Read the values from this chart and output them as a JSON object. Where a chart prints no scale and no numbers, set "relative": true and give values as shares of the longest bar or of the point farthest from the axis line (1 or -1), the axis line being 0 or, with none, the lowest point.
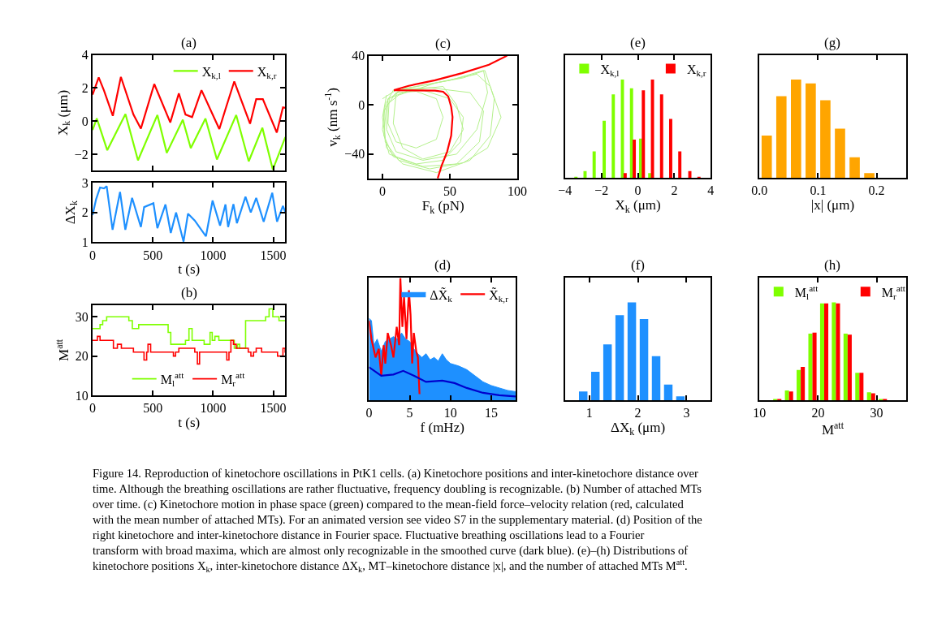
{
  "chart_data": [
    {
      "type": "line",
      "title": "(a)",
      "ylabel": "X$_{k}$ (μm)",
      "xlim": [
        0,
        1600
      ],
      "xticks": [
        0,
        500,
        1000,
        1500
      ],
      "ylim": [
        -3,
        4
      ],
      "yticks": [
        -2,
        0,
        2,
        4
      ],
      "tick_labels": "y",
      "legend": "top right",
      "series": [
        {
          "name": "X$_{k,l}$",
          "color": "#7fff00",
          "x": [
            0,
            35,
            122,
            273,
            377,
            538,
            616,
            749,
            815,
            937,
            1032,
            1192,
            1296,
            1409,
            1496,
            1600
          ],
          "values": [
            -0.53,
            0.16,
            -1.76,
            0.43,
            -2.37,
            0.37,
            -1.92,
            0.08,
            -1.63,
            0.16,
            -2.32,
            0.37,
            -2.43,
            -0.4,
            -2.93,
            -0.96
          ]
        },
        {
          "name": "X$_{k,r}$",
          "color": "#ff0000",
          "x": [
            0,
            51,
            95,
            168,
            235,
            339,
            401,
            512,
            645,
            716,
            771,
            826,
            904,
            1052,
            1103,
            1176,
            1307,
            1358,
            1413,
            1529,
            1580,
            1600
          ],
          "values": [
            1.6,
            2.64,
            1.84,
            0.32,
            2.67,
            0.4,
            -0.45,
            2.24,
            -0.08,
            1.68,
            0.4,
            0.24,
            1.87,
            -0.48,
            0.72,
            2.4,
            -0.16,
            1.33,
            1.33,
            -0.69,
            0.83,
            0.8
          ]
        }
      ]
    },
    {
      "type": "line",
      "xlabel": "t (s)",
      "ylabel": "ΔX$_{k}$",
      "xlim": [
        0,
        1600
      ],
      "xticks": [
        0,
        500,
        1000,
        1500
      ],
      "ylim": [
        1,
        3
      ],
      "yticks": [
        1,
        2,
        3
      ],
      "series": [
        {
          "color": "#1e90ff",
          "x": [
            0,
            29,
            62,
            95,
            117,
            166,
            228,
            272,
            328,
            401,
            428,
            505,
            538,
            605,
            649,
            693,
            755,
            792,
            848,
            941,
            996,
            1058,
            1103,
            1125,
            1169,
            1198,
            1269,
            1313,
            1358,
            1420,
            1491,
            1531,
            1580,
            1600
          ],
          "values": [
            1.91,
            2.44,
            2.84,
            2.81,
            2.88,
            1.42,
            2.69,
            1.42,
            2.49,
            1.51,
            2.18,
            2.31,
            1.47,
            2.27,
            1.31,
            2.0,
            1.02,
            1.96,
            1.73,
            1.2,
            2.4,
            1.56,
            2.27,
            1.51,
            2.28,
            1.64,
            2.53,
            2.0,
            2.49,
            1.69,
            2.66,
            1.69,
            2.22,
            2.0
          ]
        }
      ]
    },
    {
      "type": "step",
      "title": "(b)",
      "xlabel": "t (s)",
      "ylabel": "M$^{att}$",
      "xlim": [
        0,
        1600
      ],
      "xticks": [
        0,
        500,
        1000,
        1500
      ],
      "ylim": [
        10,
        33
      ],
      "yticks": [
        10,
        20,
        30
      ],
      "legend": "bottom",
      "series": [
        {
          "name": "M$_{l}$$^{att}$",
          "color": "#7fff00",
          "x": [
            0,
            62,
            84,
            117,
            301,
            330,
            383,
            605,
            627,
            649,
            771,
            800,
            826,
            926,
            975,
            993,
            1015,
            1048,
            1176,
            1203,
            1221,
            1270,
            1436,
            1465,
            1496,
            1547,
            1600
          ],
          "values": [
            27,
            28,
            29,
            30,
            29,
            27,
            28,
            28,
            26,
            23,
            24,
            27,
            24,
            23,
            26,
            24,
            25,
            24,
            22,
            23,
            22,
            29,
            30,
            32,
            30,
            29,
            29
          ]
        },
        {
          "name": "M$_{r}$$^{att}$",
          "color": "#ff0000",
          "x": [
            0,
            40,
            62,
            173,
            206,
            239,
            339,
            427,
            449,
            460,
            482,
            671,
            689,
            716,
            848,
            870,
            888,
            1114,
            1132,
            1148,
            1169,
            1192,
            1292,
            1314,
            1336,
            1358,
            1403,
            1535,
            1580,
            1598,
            1600
          ],
          "values": [
            24,
            25,
            24,
            22,
            23,
            22,
            21,
            19,
            21,
            23,
            21,
            20,
            21,
            22,
            21,
            18,
            21,
            19,
            21,
            24,
            23,
            22,
            21,
            20,
            21,
            22,
            21,
            20,
            22,
            21,
            21
          ]
        }
      ]
    },
    {
      "type": "line",
      "title": "(c)",
      "xlabel": "F$_{k}$ (pN)",
      "ylabel": "v$_{k}$ (nm s$^{-1}$)",
      "xlim": [
        -10,
        100
      ],
      "xticks": [
        0,
        50,
        100
      ],
      "ylim": [
        -60,
        40
      ],
      "yticks": [
        -40,
        0,
        40
      ],
      "series": [
        {
          "color": "#b4f08c",
          "x": [
            0,
            10,
            30,
            50,
            60,
            58,
            45,
            25,
            5,
            0,
            2,
            8,
            35,
            65,
            75,
            72,
            55,
            30,
            8,
            1,
            3,
            12,
            40,
            70,
            80,
            88,
            78,
            60,
            35,
            12,
            2,
            1,
            10,
            25,
            40,
            45,
            40,
            25,
            10,
            4,
            5,
            15,
            50,
            75,
            78,
            70,
            55,
            30,
            10,
            3,
            4,
            20,
            45,
            55,
            60,
            50,
            30,
            15,
            8,
            10,
            12,
            30,
            60,
            76,
            83,
            80,
            65,
            40,
            15,
            3,
            0,
            3
          ],
          "values": [
            5,
            12,
            12,
            5,
            -10,
            -30,
            -45,
            -48,
            -40,
            -20,
            0,
            12,
            14,
            10,
            -5,
            -30,
            -48,
            -50,
            -42,
            -25,
            0,
            8,
            18,
            25,
            15,
            -10,
            -35,
            -47,
            -52,
            -45,
            -30,
            -5,
            10,
            11,
            5,
            -10,
            -28,
            -35,
            -30,
            -15,
            5,
            13,
            20,
            28,
            10,
            -20,
            -40,
            -45,
            -38,
            -20,
            5,
            12,
            15,
            0,
            -20,
            -38,
            -44,
            -35,
            -15,
            8,
            12,
            16,
            22,
            28,
            5,
            -25,
            -45,
            -55,
            -48,
            -35,
            -10,
            8
          ]
        },
        {
          "color": "#ff0000",
          "x": [
            92.5,
            79,
            59,
            39,
            19.4,
            8.5,
            39,
            45,
            48.8,
            51,
            52,
            51,
            48,
            44,
            41
          ],
          "values": [
            40,
            32.6,
            25.8,
            20,
            15.5,
            12,
            11.6,
            10.7,
            6.9,
            -1.7,
            -10,
            -25,
            -38,
            -49,
            -59.6
          ]
        }
      ]
    },
    {
      "type": "line",
      "title": "(d)",
      "xlabel": "f (mHz)",
      "xlim": [
        0,
        18
      ],
      "xticks": [
        0,
        5,
        10,
        15
      ],
      "relative": true,
      "legend": "top right",
      "series": [
        {
          "name": "ΔX̃$_{k}$",
          "type": "area",
          "color": "#1e90ff",
          "x": [
            0,
            0.3,
            0.6,
            1,
            1.5,
            2,
            2.5,
            3,
            3.5,
            4,
            4.5,
            5,
            5.5,
            6,
            6.5,
            7,
            7.5,
            8,
            8.5,
            9,
            9.5,
            10,
            11,
            12,
            13,
            14,
            15,
            16,
            17,
            18
          ],
          "values": [
            0.67,
            0.65,
            0.45,
            0.5,
            0.4,
            0.48,
            0.5,
            0.52,
            0.5,
            0.55,
            0.5,
            0.48,
            0.42,
            0.38,
            0.35,
            0.38,
            0.33,
            0.35,
            0.32,
            0.38,
            0.33,
            0.3,
            0.28,
            0.25,
            0.2,
            0.15,
            0.12,
            0.1,
            0.08,
            0.07
          ]
        },
        {
          "name": "X̃$_{k,r}$",
          "color": "#ff0000",
          "x": [
            0,
            0.3,
            0.8,
            1.2,
            1.5,
            1.8,
            2.0,
            2.3,
            2.7,
            3.0,
            3.4,
            3.7,
            3.85,
            4.1,
            4.3,
            4.6,
            4.9,
            5.1,
            5.3,
            5.5,
            5.8,
            6.0,
            6.2
          ],
          "values": [
            0.65,
            0.5,
            0.35,
            0.42,
            0.2,
            0.45,
            0.3,
            0.55,
            0.45,
            0.35,
            0.6,
            0.45,
            1.0,
            0.6,
            0.85,
            0.5,
            0.9,
            0.7,
            0.3,
            0.55,
            0.4,
            0.35,
            0.05
          ]
        },
        {
          "color": "#0000cd",
          "x": [
            0,
            1.5,
            3,
            4.2,
            5.5,
            7,
            9,
            10.5,
            12,
            14,
            16,
            18
          ],
          "values": [
            0.27,
            0.2,
            0.21,
            0.24,
            0.2,
            0.15,
            0.16,
            0.14,
            0.1,
            0.06,
            0.04,
            0.03
          ]
        }
      ]
    },
    {
      "type": "bar",
      "title": "(e)",
      "xlabel": "X$_{k}$ (μm)",
      "xlim": [
        -4,
        4
      ],
      "xticks": [
        -4,
        -2,
        0,
        2,
        4
      ],
      "relative": true,
      "legend": "top",
      "series": [
        {
          "name": "X$_{k,l}$",
          "color": "#7fff00",
          "x": [
            -3.4,
            -2.9,
            -2.4,
            -1.85,
            -1.35,
            -0.85,
            -0.35,
            0.15,
            0.65
          ],
          "values": [
            0.005,
            0.07,
            0.27,
            0.58,
            0.85,
            1.0,
            0.91,
            0.4,
            0.05
          ]
        },
        {
          "name": "X$_{k,r}$",
          "color": "#ff0000",
          "x": [
            -0.7,
            -0.2,
            0.3,
            0.8,
            1.3,
            1.8,
            2.3,
            2.85,
            3.35
          ],
          "values": [
            0.05,
            0.39,
            0.89,
            1.0,
            0.85,
            0.6,
            0.27,
            0.07,
            0.005
          ]
        }
      ]
    },
    {
      "type": "bar",
      "title": "(g)",
      "xlabel": "|x| (μm)",
      "xlim": [
        0,
        0.25
      ],
      "xticks": [
        {
          "value": 0,
          "label": "0.0"
        },
        0.1,
        0.2
      ],
      "relative": true,
      "series": [
        {
          "color": "#ffa500",
          "x": [
            0.0125,
            0.0375,
            0.0625,
            0.0875,
            0.1125,
            0.1375,
            0.1625,
            0.1875
          ],
          "values": [
            0.43,
            0.83,
            1.0,
            0.96,
            0.79,
            0.5,
            0.21,
            0.05
          ]
        }
      ]
    },
    {
      "type": "bar",
      "title": "(f)",
      "xlabel": "ΔX$_{k}$ (μm)",
      "xlim": [
        0.5,
        3.5
      ],
      "xticks": [
        1,
        2,
        3
      ],
      "relative": true,
      "series": [
        {
          "color": "#1e90ff",
          "x": [
            0.875,
            1.125,
            1.375,
            1.625,
            1.875,
            2.125,
            2.375,
            2.625,
            2.875
          ],
          "values": [
            0.09,
            0.29,
            0.57,
            0.87,
            1.0,
            0.83,
            0.45,
            0.16,
            0.04
          ]
        }
      ]
    },
    {
      "type": "bar",
      "title": "(h)",
      "xlabel": "M$^{att}$",
      "xlim": [
        10,
        35
      ],
      "xticks": [
        10,
        20,
        30
      ],
      "relative": true,
      "legend": "top",
      "series": [
        {
          "name": "M$_{l}$$^{att}$",
          "color": "#7fff00",
          "x": [
            12.7,
            14.7,
            16.7,
            18.7,
            20.7,
            22.7,
            24.7,
            26.7,
            28.7,
            30.7
          ],
          "values": [
            0.01,
            0.1,
            0.31,
            0.68,
            0.99,
            1.0,
            0.68,
            0.28,
            0.08,
            0.007
          ]
        },
        {
          "name": "M$_{r}$$^{att}$",
          "color": "#ff0000",
          "x": [
            13.4,
            15.4,
            17.4,
            19.4,
            21.4,
            23.4,
            25.4,
            27.4,
            29.4,
            31.4
          ],
          "values": [
            0.007,
            0.09,
            0.34,
            0.69,
            0.99,
            0.99,
            0.67,
            0.28,
            0.07,
            0.007
          ]
        }
      ]
    },
    {
      "type": "other",
      "annotations": [
        "Figure 14. Reproduction of kinetochore oscillations in PtK1 cells. (a) Kinetochore positions and inter-kinetochore distance over time. Although the breathing oscillations are rather fluctuative, frequency doubling is recognizable. (b) Number of attached MTs over time. (c) Kinetochore motion in phase space (green) compared to the mean-field force–velocity relation (red, calculated with the mean number of attached MTs). For an animated version see video S7 in the supplementary material. (d) Position of the right kinetochore and inter-kinetochore distance in Fourier space. Fluctuative breathing oscillations lead to a Fourier transform with broad maxima, which are almost only recognizable in the smoothed curve (dark blue). (e)–(h) Distributions of kinetochore positions X$_{k}$, inter-kinetochore distance ΔX$_{k}$, MT–kinetochore distance |x|, and the number of attached MTs M$^{att}$."
      ]
    }
  ]
}
